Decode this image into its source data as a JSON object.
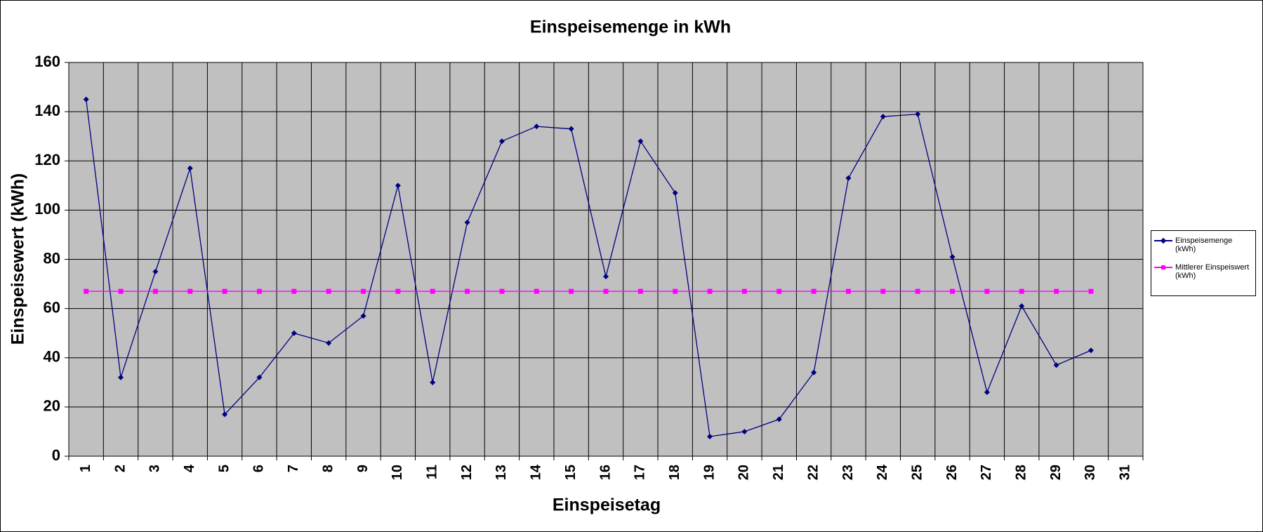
{
  "chart_data": {
    "type": "line",
    "title": "Einspeisemenge in kWh",
    "x_label": "Einspeisetag",
    "y_label": "Einspeisewert  (kWh)",
    "categories": [
      "1",
      "2",
      "3",
      "4",
      "5",
      "6",
      "7",
      "8",
      "9",
      "10",
      "11",
      "12",
      "13",
      "14",
      "15",
      "16",
      "17",
      "18",
      "19",
      "20",
      "21",
      "22",
      "23",
      "24",
      "25",
      "26",
      "27",
      "28",
      "29",
      "30",
      "31"
    ],
    "series": [
      {
        "name": "Einspeisemenge (kWh)",
        "color": "#000080",
        "marker": "diamond",
        "values": [
          145,
          32,
          75,
          117,
          17,
          32,
          50,
          46,
          57,
          110,
          30,
          95,
          128,
          134,
          133,
          73,
          128,
          107,
          8,
          10,
          15,
          34,
          113,
          138,
          139,
          81,
          26,
          61,
          37,
          43,
          null
        ]
      },
      {
        "name": "Mittlerer Einspeiswert (kWh)",
        "color": "#ff00ff",
        "marker": "square",
        "values": [
          67,
          67,
          67,
          67,
          67,
          67,
          67,
          67,
          67,
          67,
          67,
          67,
          67,
          67,
          67,
          67,
          67,
          67,
          67,
          67,
          67,
          67,
          67,
          67,
          67,
          67,
          67,
          67,
          67,
          67,
          null
        ]
      }
    ],
    "ylim": [
      0,
      160
    ],
    "yticks": [
      0,
      20,
      40,
      60,
      80,
      100,
      120,
      140,
      160
    ],
    "grid": true,
    "legend": "right"
  }
}
